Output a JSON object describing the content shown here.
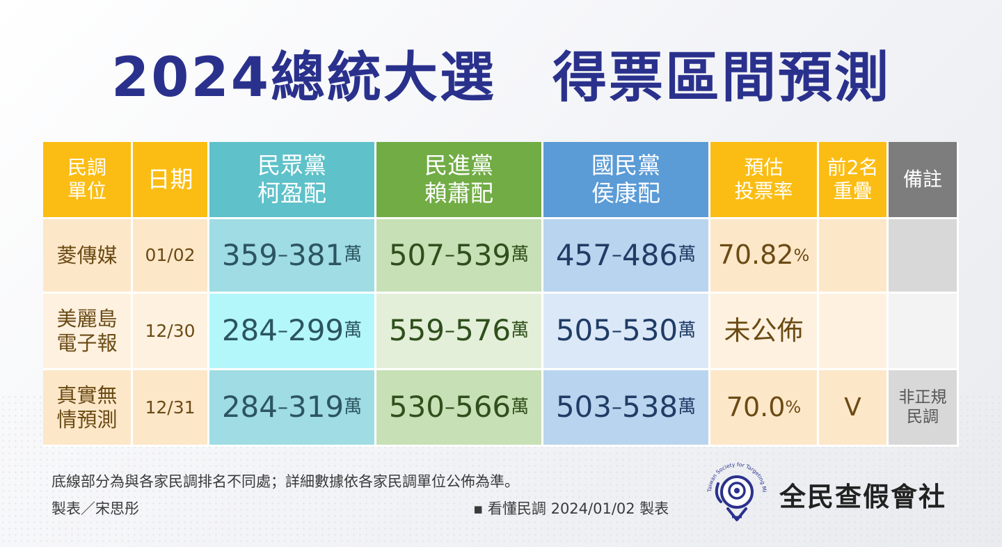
{
  "title": "2024總統大選　得票區間預測",
  "header": {
    "pollster": "民調\n單位",
    "date": "日期",
    "tpp": "民眾黨\n柯盈配",
    "dpp": "民進黨\n賴蕭配",
    "kmt": "國民黨\n侯康配",
    "turnout": "預估\n投票率",
    "overlap": "前2名\n重疊",
    "remark": "備註"
  },
  "unit": "萬",
  "dash": "–",
  "percent": "%",
  "rows": [
    {
      "pollster": "菱傳媒",
      "date": "01/02",
      "tpp_lo": "359",
      "tpp_hi": "381",
      "dpp_lo": "507",
      "dpp_hi": "539",
      "kmt_lo": "457",
      "kmt_hi": "486",
      "turnout": "70.82",
      "turnout_pct": "%",
      "overlap": "",
      "remark": ""
    },
    {
      "pollster": "美麗島\n電子報",
      "date": "12/30",
      "tpp_lo": "284",
      "tpp_hi": "299",
      "dpp_lo": "559",
      "dpp_hi": "576",
      "kmt_lo": "505",
      "kmt_hi": "530",
      "turnout": "未公佈",
      "turnout_pct": "",
      "overlap": "",
      "remark": ""
    },
    {
      "pollster": "真實無\n情預測",
      "date": "12/31",
      "tpp_lo": "284",
      "tpp_hi": "319",
      "dpp_lo": "530",
      "dpp_hi": "566",
      "kmt_lo": "503",
      "kmt_hi": "538",
      "turnout": "70.0",
      "turnout_pct": "%",
      "overlap": "V",
      "remark": "非正規\n民調"
    }
  ],
  "chart_data": {
    "type": "table",
    "title": "2024總統大選　得票區間預測",
    "columns": [
      "民調單位",
      "日期",
      "民眾黨 柯盈配",
      "民進黨 賴蕭配",
      "國民黨 侯康配",
      "預估投票率",
      "前2名重疊",
      "備註"
    ],
    "unit": "萬",
    "series": [
      {
        "name": "民眾黨 柯盈配",
        "ranges": [
          [
            359,
            381
          ],
          [
            284,
            299
          ],
          [
            284,
            319
          ]
        ]
      },
      {
        "name": "民進黨 賴蕭配",
        "ranges": [
          [
            507,
            539
          ],
          [
            559,
            576
          ],
          [
            530,
            566
          ]
        ]
      },
      {
        "name": "國民黨 侯康配",
        "ranges": [
          [
            457,
            486
          ],
          [
            505,
            530
          ],
          [
            503,
            538
          ]
        ]
      }
    ],
    "categories": [
      "菱傳媒",
      "美麗島電子報",
      "真實無情預測"
    ]
  },
  "footer": {
    "note": "底線部分為與各家民調排名不同處；詳細數據依各家民調單位公佈為準。",
    "maker": "製表／宋思彤",
    "source": "▪ 看懂民調 2024/01/02 製表",
    "logo_text": "全民查假會社",
    "logo_ring_text": "Taiwan Society for Targeting Misinformation"
  },
  "colors": {
    "title": "#2a318c",
    "header_yellow": "#fbbd13",
    "header_teal": "#5fc1c9",
    "header_green": "#71ac45",
    "header_blue": "#5b9bd6",
    "header_gray": "#7d7d7d"
  },
  "icons": {
    "logo": "magnifier-person-logo-icon"
  }
}
